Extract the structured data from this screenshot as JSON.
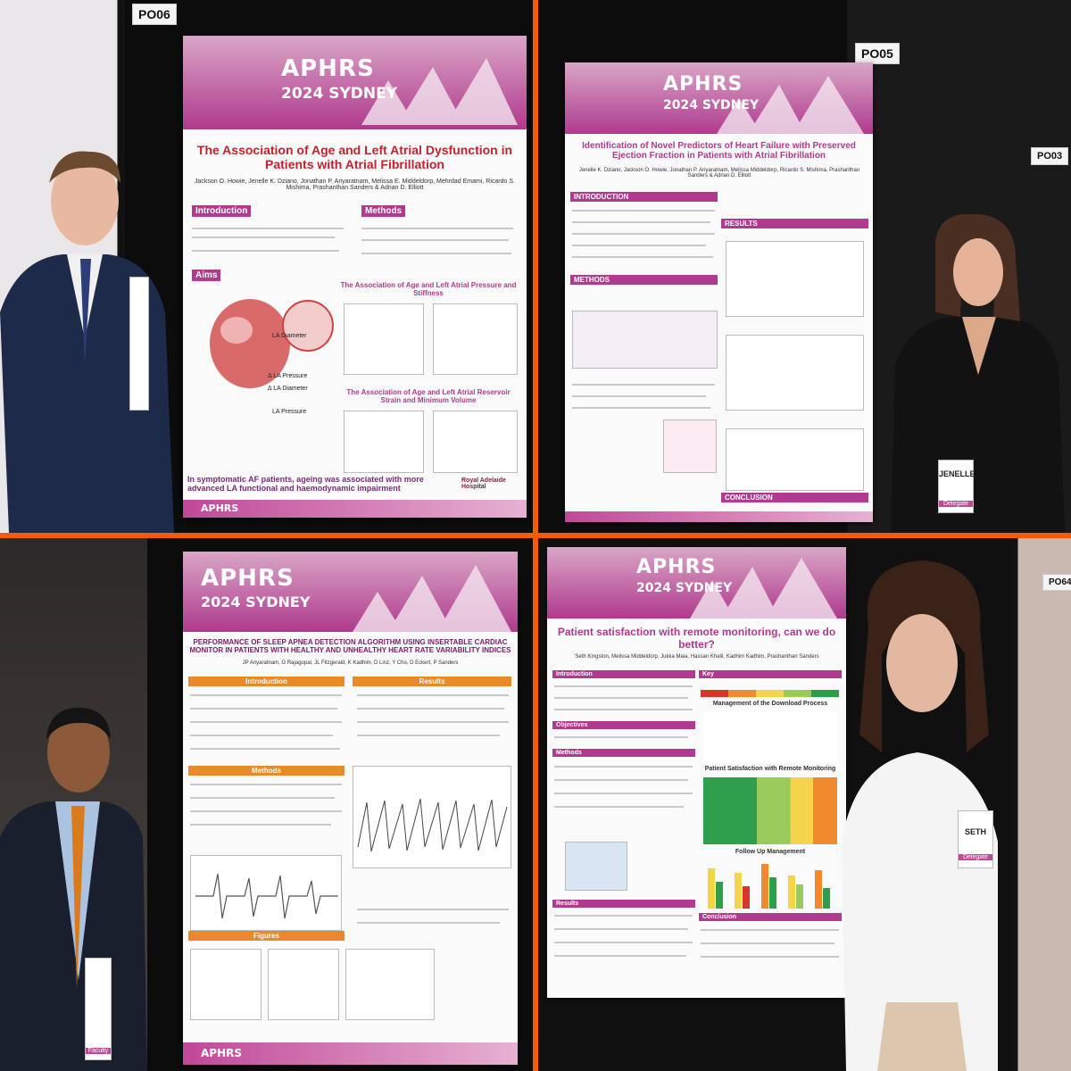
{
  "panels": {
    "p1": {
      "board_label": "PO06",
      "conference": {
        "logo": "APHRS",
        "year": "2024 SYDNEY"
      },
      "title": "The Association of Age and Left Atrial Dysfunction in Patients with Atrial Fibrillation",
      "authors": "Jackson O. Howie, Jenelle K. Dziano, Jonathan P. Ariyaratnam, Melissa E. Middeldorp, Mehrdad Emami, Ricardo S. Mishima, Prashanthan Sanders & Adrian D. Elliott",
      "sections": {
        "intro": "Introduction",
        "methods": "Methods",
        "aims": "Aims"
      },
      "chart_titles": [
        "The Association of Age and Left Atrial Pressure and Stiffness",
        "The Association of Age and Left Atrial Reservoir Strain and Minimum Volume"
      ],
      "diagram_labels": [
        "LA Diameter",
        "Δ LA Pressure",
        "Δ LA Diameter",
        "LA Pressure"
      ],
      "conclusion": "In symptomatic AF patients, ageing was associated with more advanced LA functional and haemodynamic impairment",
      "logo_text": "Royal Adelaide Hospital"
    },
    "p2": {
      "board_label": "PO05",
      "side_label": "PO03",
      "conference": {
        "logo": "APHRS",
        "year": "2024 SYDNEY"
      },
      "title": "Identification of Novel Predictors of Heart Failure with Preserved Ejection Fraction in Patients with Atrial Fibrillation",
      "authors": "Jenelle K. Dziano, Jackson O. Howie, Jonathan P. Ariyaratnam, Melissa Middeldorp, Ricardo S. Mishima, Prashanthan Sanders & Adrian D. Elliott",
      "sections": {
        "intro": "INTRODUCTION",
        "methods": "METHODS",
        "results": "RESULTS",
        "conclusion": "CONCLUSION"
      },
      "badge_name": "JENELLE",
      "badge_role": "Delegate"
    },
    "p3": {
      "conference": {
        "logo": "APHRS",
        "year": "2024 SYDNEY"
      },
      "title": "PERFORMANCE OF SLEEP APNEA DETECTION ALGORITHM USING INSERTABLE CARDIAC MONITOR IN PATIENTS WITH HEALTHY AND UNHEALTHY HEART RATE VARIABILITY INDICES",
      "authors": "JP Ariyaratnam, G Rajagopal, JL Fitzgerald, K Kadhim, D Linz, Y Cho, D Eckert, P Sanders",
      "sections": {
        "intro": "Introduction",
        "methods": "Methods",
        "results": "Results",
        "figures": "Figures"
      },
      "badge_role": "Faculty"
    },
    "p4": {
      "side_label": "PO64",
      "conference": {
        "logo": "APHRS",
        "year": "2024 SYDNEY"
      },
      "title": "Patient satisfaction with remote monitoring, can we do better?",
      "authors": "Seth Kingston, Melissa Middeldorp, Jukka Maia, Hassan Khalil, Kadhim Kadhim, Prashanthan Sanders",
      "sections": {
        "intro": "Introduction",
        "objectives": "Objectives",
        "methods": "Methods",
        "results": "Results",
        "conclusion": "Conclusion",
        "key": "Key"
      },
      "chart_titles": [
        "Management of the Download Process",
        "Patient Satisfaction with Remote Monitoring",
        "Follow Up Management"
      ],
      "badge_name": "SETH",
      "badge_role": "Delegate"
    }
  },
  "colors": {
    "frame": "#f25c05",
    "brand": "#b03a8e",
    "title_red": "#c0242d"
  }
}
